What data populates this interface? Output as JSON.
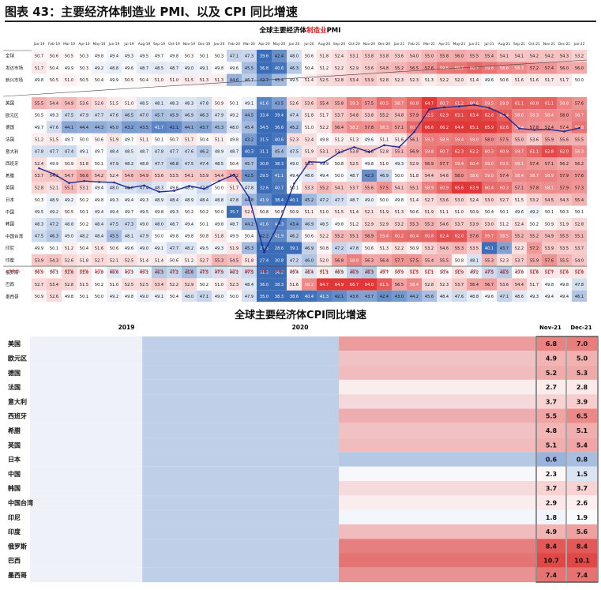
{
  "header": {
    "title": "图表 43：主要经济体制造业 PMI、以及 CPI 同比增速"
  },
  "chart_data": [
    {
      "type": "heatmap",
      "title_parts": [
        "全球主要经济体",
        "制造业",
        "PMI"
      ],
      "months": [
        "Jan-19",
        "Feb-19",
        "Mar-19",
        "Apr-19",
        "May-19",
        "Jun-19",
        "Jul-19",
        "Aug-19",
        "Sep-19",
        "Oct-19",
        "Nov-19",
        "Dec-19",
        "Jan-20",
        "Feb-20",
        "Mar-20",
        "Apr-20",
        "May-20",
        "Jun-20",
        "Jul-20",
        "Aug-20",
        "Sep-20",
        "Oct-20",
        "Nov-20",
        "Dec-20",
        "Jan-21",
        "Feb-21",
        "Mar-21",
        "Apr-21",
        "May-21",
        "Jun-21",
        "Jul-21",
        "Aug-21",
        "Sep-21",
        "Oct-21",
        "Nov-21",
        "Dec-21",
        "Jan-22"
      ],
      "rows": [
        {
          "name": "全球",
          "values": [
            50.7,
            50.6,
            50.5,
            50.3,
            49.8,
            49.4,
            49.3,
            49.5,
            49.7,
            49.8,
            50.3,
            50.1,
            50.3,
            47.1,
            47.3,
            39.6,
            42.4,
            48.0,
            50.6,
            51.8,
            52.4,
            53.1,
            53.8,
            53.8,
            53.6,
            54.0,
            55.0,
            55.8,
            56.0,
            55.5,
            55.4,
            54.1,
            54.1,
            54.2,
            54.2,
            54.3,
            53.2
          ]
        },
        {
          "name": "发达市场",
          "values": [
            51.7,
            50.4,
            49.9,
            50.3,
            49.2,
            48.8,
            49.6,
            48.7,
            48.5,
            48.7,
            49.0,
            49.1,
            49.8,
            49.6,
            45.5,
            36.8,
            40.6,
            46.3,
            50.4,
            51.2,
            52.2,
            52.9,
            53.6,
            54.8,
            55.2,
            56.5,
            57.6,
            59.5,
            59.7,
            60.7,
            59.8,
            58.6,
            58.3,
            57.2,
            57.4,
            56.0,
            56.0
          ]
        },
        {
          "name": "新兴市场",
          "values": [
            49.8,
            50.5,
            51.0,
            50.5,
            50.4,
            49.9,
            50.5,
            50.4,
            51.0,
            51.0,
            51.5,
            51.3,
            51.3,
            44.6,
            46.7,
            42.7,
            45.4,
            49.5,
            51.4,
            52.5,
            52.8,
            53.4,
            53.9,
            52.8,
            52.3,
            52.3,
            51.3,
            52.2,
            52.0,
            51.4,
            49.6,
            50.6,
            51.6,
            51.6,
            51.7,
            51.7,
            50.0
          ]
        },
        {
          "name": "美国",
          "values": [
            55.5,
            54.4,
            54.9,
            53.6,
            52.6,
            51.5,
            51.0,
            48.5,
            48.1,
            48.3,
            48.3,
            47.8,
            50.9,
            50.1,
            49.1,
            41.6,
            43.5,
            52.6,
            53.6,
            55.4,
            55.8,
            59.3,
            57.5,
            60.5,
            58.7,
            60.8,
            64.7,
            60.7,
            61.2,
            60.6,
            59.5,
            59.9,
            61.1,
            60.8,
            61.1,
            58.8,
            57.6
          ]
        },
        {
          "name": "欧元区",
          "values": [
            50.5,
            49.3,
            47.5,
            47.9,
            47.7,
            47.6,
            46.5,
            47.0,
            45.7,
            45.9,
            46.9,
            46.3,
            47.9,
            49.2,
            44.5,
            33.4,
            39.4,
            47.4,
            51.8,
            51.7,
            53.7,
            54.8,
            53.8,
            55.2,
            54.8,
            57.9,
            62.5,
            62.9,
            63.1,
            63.4,
            62.8,
            61.4,
            58.6,
            58.3,
            58.4,
            58.0,
            58.7
          ]
        },
        {
          "name": "德国",
          "values": [
            49.7,
            47.6,
            44.1,
            44.4,
            44.3,
            45.0,
            43.2,
            43.5,
            41.7,
            42.1,
            44.1,
            43.7,
            45.3,
            48.0,
            45.4,
            34.5,
            36.6,
            45.2,
            51.0,
            52.2,
            56.4,
            58.2,
            57.8,
            58.3,
            57.1,
            60.7,
            66.6,
            66.2,
            64.4,
            65.1,
            65.9,
            62.6,
            58.4,
            57.8,
            57.4,
            57.4,
            59.8
          ]
        },
        {
          "name": "法国",
          "values": [
            51.2,
            51.5,
            49.7,
            50.0,
            50.6,
            51.9,
            49.7,
            51.1,
            50.1,
            50.7,
            51.7,
            50.4,
            51.1,
            49.8,
            43.2,
            31.5,
            40.6,
            52.3,
            52.4,
            49.8,
            51.2,
            51.3,
            49.6,
            51.1,
            51.6,
            56.1,
            59.3,
            58.9,
            59.4,
            59.0,
            58.0,
            57.5,
            55.0,
            53.6,
            55.9,
            55.6,
            55.5
          ]
        },
        {
          "name": "意大利",
          "values": [
            47.8,
            47.7,
            47.4,
            49.1,
            49.7,
            48.4,
            48.5,
            48.7,
            47.8,
            47.7,
            47.6,
            46.2,
            48.9,
            48.7,
            40.3,
            31.1,
            45.4,
            47.5,
            51.9,
            53.1,
            53.2,
            53.8,
            53.8,
            52.8,
            55.1,
            56.9,
            59.8,
            60.7,
            62.3,
            62.2,
            60.3,
            60.9,
            59.7,
            61.1,
            62.8,
            62.0,
            58.3
          ]
        },
        {
          "name": "西班牙",
          "values": [
            52.4,
            49.9,
            50.9,
            51.8,
            50.1,
            47.9,
            48.2,
            48.8,
            47.7,
            46.8,
            47.5,
            47.4,
            48.5,
            50.4,
            45.7,
            30.8,
            38.3,
            49.0,
            53.5,
            49.9,
            50.8,
            52.5,
            49.8,
            51.0,
            49.3,
            52.9,
            56.9,
            57.7,
            59.4,
            60.4,
            59.0,
            59.5,
            58.1,
            57.4,
            57.1,
            56.2,
            56.2
          ]
        },
        {
          "name": "希腊",
          "values": [
            53.7,
            54.2,
            54.7,
            56.6,
            54.2,
            52.4,
            54.6,
            54.9,
            53.6,
            53.5,
            54.1,
            53.9,
            54.4,
            56.2,
            42.5,
            29.5,
            41.1,
            49.4,
            48.6,
            49.4,
            50.0,
            48.7,
            42.3,
            46.9,
            50.0,
            51.8,
            54.4,
            54.6,
            58.0,
            58.6,
            59.0,
            57.4,
            58.4,
            58.7,
            58.9,
            57.9,
            57.6
          ]
        },
        {
          "name": "英国",
          "values": [
            52.8,
            52.1,
            55.1,
            53.1,
            49.4,
            48.0,
            48.0,
            47.4,
            48.3,
            49.6,
            48.9,
            47.5,
            50.0,
            51.7,
            47.8,
            32.6,
            40.7,
            50.1,
            53.3,
            55.2,
            54.1,
            53.7,
            55.6,
            57.5,
            54.1,
            55.1,
            58.9,
            60.9,
            65.6,
            63.9,
            60.4,
            60.3,
            57.1,
            57.8,
            58.1,
            57.9,
            57.3
          ]
        },
        {
          "name": "日本",
          "values": [
            50.3,
            48.9,
            49.2,
            50.2,
            49.8,
            49.3,
            49.4,
            49.3,
            48.9,
            48.4,
            48.9,
            48.4,
            48.8,
            47.8,
            44.8,
            41.9,
            38.4,
            40.1,
            45.2,
            47.2,
            47.7,
            48.7,
            49.0,
            50.0,
            49.8,
            51.4,
            52.7,
            53.6,
            53.0,
            52.4,
            53.0,
            52.7,
            51.5,
            53.2,
            54.5,
            54.3,
            55.4
          ]
        },
        {
          "name": "中国",
          "values": [
            49.5,
            49.2,
            50.5,
            50.1,
            49.4,
            49.4,
            49.7,
            49.5,
            49.8,
            49.3,
            50.2,
            50.2,
            50.0,
            35.7,
            52.0,
            50.8,
            50.6,
            50.9,
            51.1,
            51.0,
            51.5,
            51.4,
            52.1,
            51.9,
            51.3,
            50.6,
            51.9,
            51.1,
            51.0,
            50.9,
            50.4,
            50.1,
            49.6,
            49.2,
            50.1,
            50.3,
            50.1
          ]
        },
        {
          "name": "韩国",
          "values": [
            48.3,
            47.2,
            48.8,
            50.2,
            48.4,
            47.5,
            47.3,
            49.0,
            48.0,
            48.7,
            49.4,
            50.1,
            49.8,
            48.7,
            44.2,
            41.6,
            41.3,
            43.4,
            46.9,
            48.5,
            49.8,
            51.2,
            52.9,
            52.9,
            53.2,
            55.3,
            55.3,
            54.6,
            53.7,
            53.9,
            53.0,
            51.2,
            52.4,
            50.2,
            50.9,
            51.9,
            52.8
          ]
        },
        {
          "name": "中国台湾",
          "values": [
            47.5,
            46.3,
            49.0,
            48.2,
            48.4,
            45.5,
            48.1,
            47.9,
            50.0,
            49.8,
            49.8,
            50.8,
            51.8,
            49.9,
            50.4,
            42.2,
            41.9,
            46.2,
            50.6,
            52.2,
            55.2,
            55.1,
            56.9,
            59.4,
            60.2,
            60.4,
            60.8,
            62.4,
            62.0,
            57.6,
            59.7,
            58.5,
            55.2,
            55.2,
            54.9,
            55.5,
            55.1
          ]
        },
        {
          "name": "印尼",
          "values": [
            49.9,
            50.1,
            51.2,
            50.4,
            51.6,
            50.6,
            49.6,
            49.0,
            49.1,
            47.7,
            48.2,
            49.5,
            49.3,
            51.9,
            45.3,
            27.5,
            28.6,
            39.1,
            46.9,
            50.8,
            47.2,
            47.8,
            50.6,
            51.3,
            52.2,
            50.9,
            53.2,
            54.6,
            55.3,
            53.5,
            40.1,
            43.7,
            52.2,
            57.2,
            53.9,
            53.5,
            53.7
          ]
        },
        {
          "name": "印度",
          "values": [
            53.9,
            54.3,
            52.6,
            51.8,
            52.7,
            52.1,
            52.5,
            51.4,
            51.4,
            50.6,
            51.2,
            52.7,
            55.3,
            54.5,
            51.8,
            27.4,
            30.8,
            47.2,
            46.0,
            52.0,
            56.8,
            58.9,
            56.3,
            56.4,
            57.7,
            57.5,
            55.4,
            55.5,
            50.8,
            48.1,
            55.3,
            52.3,
            53.7,
            55.9,
            57.6,
            55.5,
            54.0
          ]
        },
        {
          "name": "俄罗斯",
          "values": [
            50.9,
            50.1,
            52.8,
            51.8,
            49.8,
            48.6,
            49.3,
            49.1,
            46.3,
            47.2,
            45.6,
            47.5,
            47.9,
            48.2,
            47.5,
            31.3,
            36.2,
            49.4,
            48.4,
            51.1,
            48.9,
            46.9,
            46.3,
            49.7,
            50.9,
            51.5,
            51.1,
            50.4,
            51.9,
            49.2,
            47.5,
            46.5,
            49.8,
            51.6,
            51.7,
            51.6,
            51.8
          ]
        },
        {
          "name": "巴西",
          "values": [
            52.7,
            53.4,
            52.8,
            51.5,
            50.2,
            51.0,
            52.5,
            52.5,
            53.4,
            52.2,
            52.9,
            50.2,
            51.0,
            52.3,
            48.4,
            36.0,
            38.3,
            51.6,
            58.2,
            64.7,
            64.9,
            66.7,
            64.0,
            61.5,
            56.5,
            58.4,
            52.8,
            52.3,
            53.7,
            56.4,
            56.7,
            53.6,
            54.4,
            51.7,
            49.8,
            49.8,
            47.8
          ]
        },
        {
          "name": "墨西哥",
          "values": [
            50.9,
            52.6,
            49.8,
            50.1,
            50.0,
            49.2,
            49.8,
            49.0,
            49.1,
            50.4,
            48.0,
            47.1,
            49.0,
            50.0,
            47.9,
            35.0,
            38.3,
            38.6,
            40.4,
            41.3,
            42.1,
            43.6,
            43.7,
            42.4,
            43.0,
            44.2,
            45.6,
            48.4,
            47.6,
            48.8,
            49.6,
            47.1,
            48.6,
            49.3,
            49.4,
            49.4,
            46.1
          ]
        }
      ],
      "share_label": "<50 %",
      "share_below_50": [
        "41%",
        "47%",
        "47%",
        "24%",
        "53%",
        "65%",
        "53%",
        "82%",
        "76%",
        "71%",
        "71%",
        "71%",
        "59%",
        "53%",
        "88%",
        "94%",
        "94%",
        "94%",
        "71%",
        "41%",
        "41%",
        "35%",
        "29%",
        "29%",
        "24%",
        "12%",
        "12%",
        "0%",
        "0%",
        "6%",
        "12%",
        "18%",
        "18%",
        "12%",
        "12%",
        "12%",
        "12%"
      ],
      "line_series": {
        "row": "欧元区",
        "color": "#1f2b8f"
      },
      "cmap": {
        "low": "#3a6cb8",
        "mid": "#ffffff",
        "high": "#e03838",
        "center": 50
      },
      "colors": {
        "title_highlight": "#e02020",
        "share_text": "#e02020",
        "row_label_bg": "#f0f0f0"
      }
    },
    {
      "type": "heatmap",
      "title": "全球主要经济体CPI同比增速",
      "year_labels": [
        "2019",
        "2020"
      ],
      "columns": [
        "Nov-21",
        "Dec-21"
      ],
      "rows": [
        {
          "name": "美国",
          "nov21": 6.8,
          "dec21": 7.0
        },
        {
          "name": "欧元区",
          "nov21": 4.9,
          "dec21": 5.0
        },
        {
          "name": "德国",
          "nov21": 5.2,
          "dec21": 5.3
        },
        {
          "name": "法国",
          "nov21": 2.7,
          "dec21": 2.8
        },
        {
          "name": "意大利",
          "nov21": 3.7,
          "dec21": 3.9
        },
        {
          "name": "西班牙",
          "nov21": 5.5,
          "dec21": 6.5
        },
        {
          "name": "希腊",
          "nov21": 4.8,
          "dec21": 5.1
        },
        {
          "name": "英国",
          "nov21": 5.1,
          "dec21": 5.4
        },
        {
          "name": "日本",
          "nov21": 0.6,
          "dec21": 0.8
        },
        {
          "name": "中国",
          "nov21": 2.3,
          "dec21": 1.5
        },
        {
          "name": "韩国",
          "nov21": 3.7,
          "dec21": 3.7
        },
        {
          "name": "中国台湾",
          "nov21": 2.9,
          "dec21": 2.6
        },
        {
          "name": "印尼",
          "nov21": 1.8,
          "dec21": 1.9
        },
        {
          "name": "印度",
          "nov21": 4.9,
          "dec21": 5.6
        },
        {
          "name": "俄罗斯",
          "nov21": 8.4,
          "dec21": 8.4
        },
        {
          "name": "巴西",
          "nov21": 10.7,
          "dec21": 10.1
        },
        {
          "name": "墨西哥",
          "nov21": 7.4,
          "dec21": 7.4
        }
      ]
    }
  ]
}
